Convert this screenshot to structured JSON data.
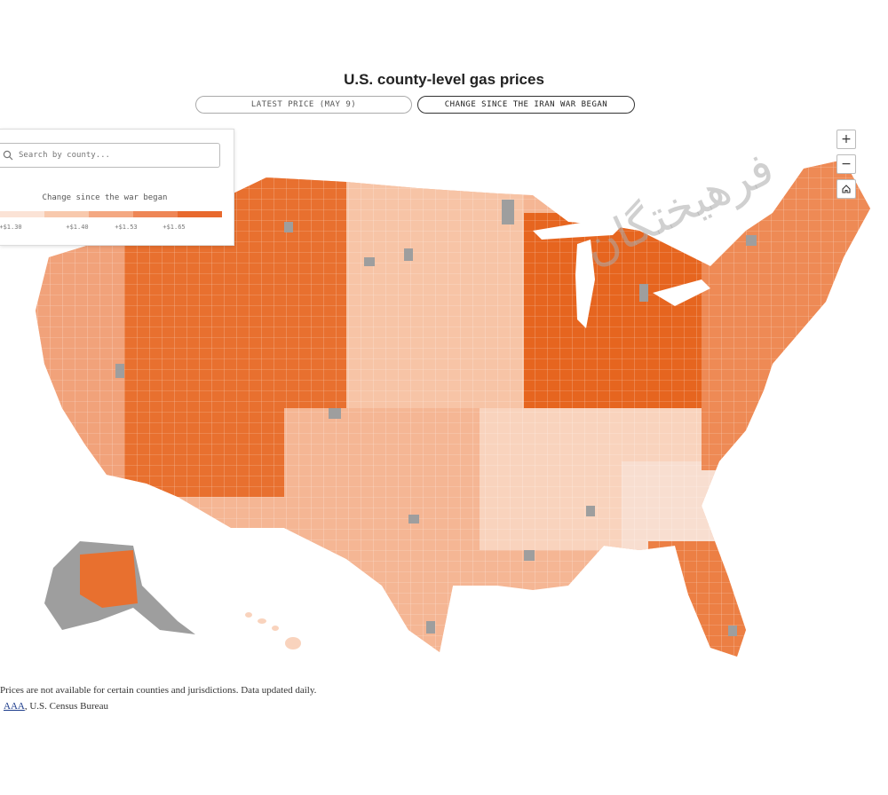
{
  "title": "U.S. county-level gas prices",
  "toggles": [
    {
      "label": "LATEST PRICE (MAY 9)",
      "active": false
    },
    {
      "label": "CHANGE SINCE THE IRAN WAR BEGAN",
      "active": true
    }
  ],
  "search": {
    "placeholder": "Search by county..."
  },
  "legend": {
    "title": "Change since the war began",
    "ticks": [
      "+$1.30",
      "+$1.40",
      "+$1.53",
      "+$1.65"
    ],
    "colors": [
      "#fbe3d6",
      "#f8c9ad",
      "#f4a882",
      "#ee8656",
      "#e8692e"
    ]
  },
  "zoom": {
    "in_label": "+",
    "out_label": "−",
    "home_icon": "home-icon"
  },
  "footer": {
    "note": "Prices are not available for certain counties and jurisdictions. Data updated daily.",
    "source_link": "AAA",
    "source_rest": ", U.S. Census Bureau"
  },
  "watermark": "فرهیختگان",
  "map": {
    "no_data_color": "#9e9e9e",
    "region_colors": {
      "west_coast": "#f1a27a",
      "mountain": "#e8702f",
      "plains": "#f7c4a6",
      "midwest_core": "#e6651f",
      "south": "#f5b694",
      "southeast": "#f9d3bd",
      "georgia": "#f8ded0",
      "florida": "#ec7f44",
      "northeast": "#ee8a55",
      "alaska": "#e8702f"
    }
  }
}
